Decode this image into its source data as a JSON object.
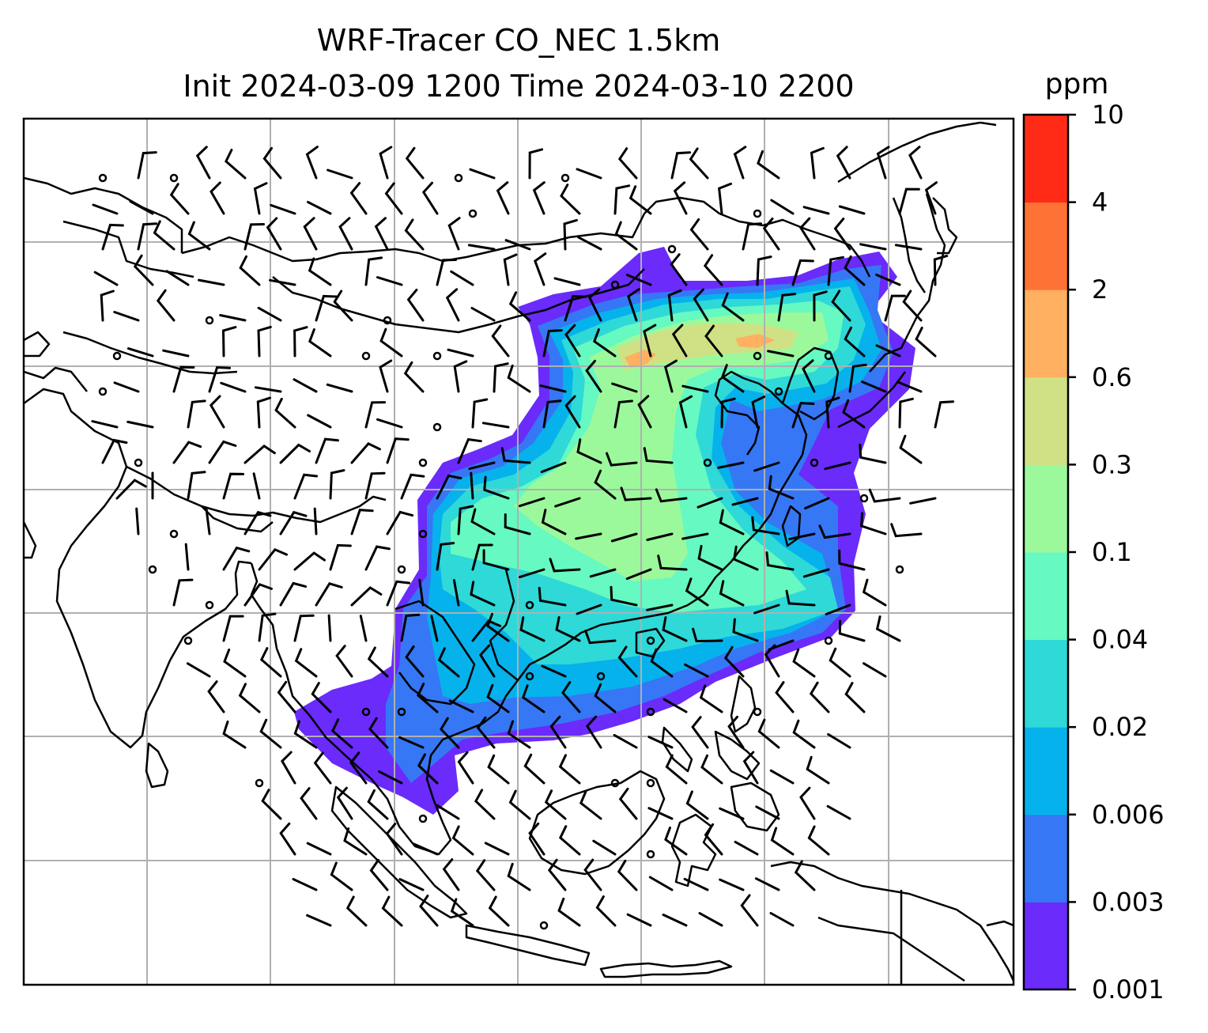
{
  "title": {
    "line1": "WRF-Tracer CO_NEC 1.5km",
    "line2": "Init 2024-03-09 1200 Time 2024-03-10 2200"
  },
  "colorbar": {
    "unit": "ppm",
    "levels": [
      "0.001",
      "0.003",
      "0.006",
      "0.02",
      "0.04",
      "0.1",
      "0.3",
      "0.6",
      "2",
      "4",
      "10"
    ],
    "colors": [
      "#6a2bfb",
      "#3677f5",
      "#06b2eb",
      "#2ed9d8",
      "#66f9c1",
      "#9cf99b",
      "#cfe184",
      "#ffb060",
      "#ff7235",
      "#ff2b16"
    ]
  },
  "map": {
    "gridlines": true,
    "coastline_color": "#000000",
    "grid_color": "#b0b0b0",
    "plume_levels_shown": [
      "0.001",
      "0.003",
      "0.006",
      "0.02",
      "0.04",
      "0.1",
      "0.3",
      "0.6"
    ]
  }
}
